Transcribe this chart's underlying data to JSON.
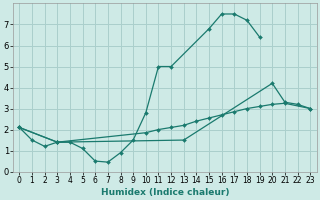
{
  "xlabel": "Humidex (Indice chaleur)",
  "bg_color": "#ceeae6",
  "grid_color": "#aacfcc",
  "line_color": "#1a7a6e",
  "xlim": [
    -0.5,
    23.5
  ],
  "ylim": [
    0,
    8
  ],
  "xticks": [
    0,
    1,
    2,
    3,
    4,
    5,
    6,
    7,
    8,
    9,
    10,
    11,
    12,
    13,
    14,
    15,
    16,
    17,
    18,
    19,
    20,
    21,
    22,
    23
  ],
  "yticks": [
    0,
    1,
    2,
    3,
    4,
    5,
    6,
    7
  ],
  "series": [
    {
      "x": [
        0,
        1,
        2,
        3,
        4,
        5,
        6,
        7,
        8,
        9,
        10,
        11,
        12,
        15,
        16,
        17,
        18,
        19
      ],
      "y": [
        2.1,
        1.5,
        1.2,
        1.4,
        1.4,
        1.1,
        0.5,
        0.45,
        0.9,
        1.5,
        2.8,
        5.0,
        5.0,
        6.8,
        7.5,
        7.5,
        7.2,
        6.4
      ]
    },
    {
      "x": [
        0,
        3,
        13,
        20,
        21,
        22,
        23
      ],
      "y": [
        2.1,
        1.4,
        1.5,
        4.2,
        3.3,
        3.2,
        3.0
      ]
    },
    {
      "x": [
        0,
        3,
        10,
        11,
        12,
        13,
        14,
        15,
        16,
        17,
        18,
        19,
        20,
        21,
        23
      ],
      "y": [
        2.1,
        1.4,
        1.85,
        2.0,
        2.1,
        2.2,
        2.4,
        2.55,
        2.7,
        2.85,
        3.0,
        3.1,
        3.2,
        3.25,
        3.0
      ]
    }
  ]
}
